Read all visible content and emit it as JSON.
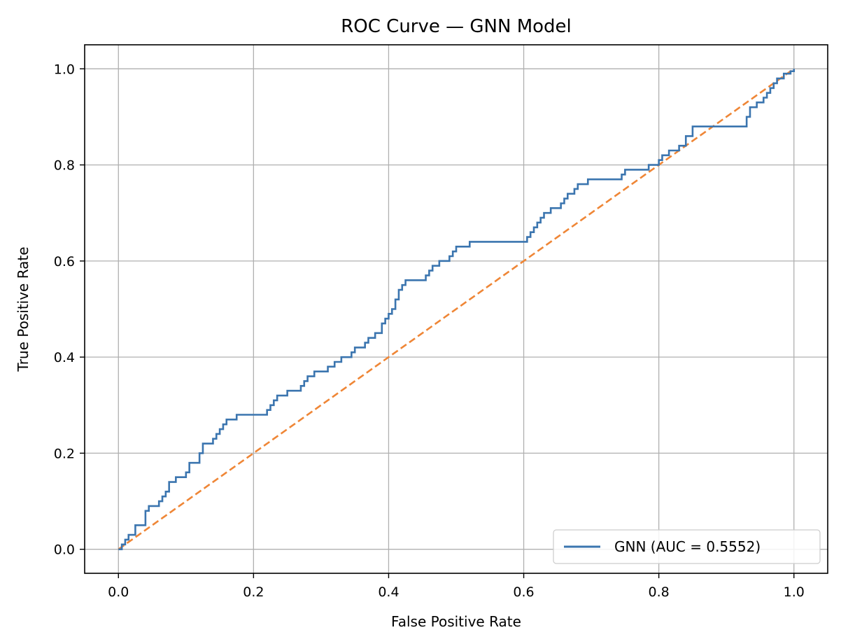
{
  "chart_data": {
    "type": "line",
    "title": "ROC Curve — GNN Model",
    "xlabel": "False Positive Rate",
    "ylabel": "True Positive Rate",
    "xlim": [
      -0.05,
      1.05
    ],
    "ylim": [
      -0.05,
      1.05
    ],
    "grid": true,
    "legend_position": "bottom-right",
    "x_ticks": [
      0.0,
      0.2,
      0.4,
      0.6,
      0.8,
      1.0
    ],
    "y_ticks": [
      0.0,
      0.2,
      0.4,
      0.6,
      0.8,
      1.0
    ],
    "x_tick_labels": [
      "0.0",
      "0.2",
      "0.4",
      "0.6",
      "0.8",
      "1.0"
    ],
    "y_tick_labels": [
      "0.0",
      "0.2",
      "0.4",
      "0.6",
      "0.8",
      "1.0"
    ],
    "series": [
      {
        "name": "GNN (AUC = 0.5552)",
        "color": "#3b75af",
        "style": "solid",
        "step": true,
        "x": [
          0.0,
          0.005,
          0.01,
          0.015,
          0.025,
          0.04,
          0.045,
          0.06,
          0.065,
          0.07,
          0.075,
          0.085,
          0.1,
          0.105,
          0.12,
          0.125,
          0.14,
          0.145,
          0.15,
          0.155,
          0.16,
          0.175,
          0.2,
          0.22,
          0.225,
          0.23,
          0.235,
          0.25,
          0.27,
          0.275,
          0.28,
          0.29,
          0.31,
          0.315,
          0.32,
          0.33,
          0.345,
          0.35,
          0.365,
          0.37,
          0.38,
          0.39,
          0.395,
          0.4,
          0.405,
          0.41,
          0.415,
          0.42,
          0.425,
          0.43,
          0.455,
          0.46,
          0.465,
          0.475,
          0.49,
          0.495,
          0.5,
          0.505,
          0.52,
          0.525,
          0.535,
          0.605,
          0.61,
          0.615,
          0.62,
          0.625,
          0.63,
          0.64,
          0.655,
          0.66,
          0.665,
          0.675,
          0.68,
          0.695,
          0.745,
          0.75,
          0.785,
          0.79,
          0.8,
          0.805,
          0.815,
          0.83,
          0.84,
          0.85,
          0.925,
          0.93,
          0.935,
          0.945,
          0.955,
          0.96,
          0.965,
          0.97,
          0.975,
          0.98,
          0.985,
          0.99,
          0.995,
          1.0
        ],
        "y": [
          0.0,
          0.01,
          0.02,
          0.03,
          0.05,
          0.08,
          0.09,
          0.1,
          0.11,
          0.12,
          0.14,
          0.15,
          0.16,
          0.18,
          0.2,
          0.22,
          0.23,
          0.24,
          0.25,
          0.26,
          0.27,
          0.28,
          0.28,
          0.29,
          0.3,
          0.31,
          0.32,
          0.33,
          0.34,
          0.35,
          0.36,
          0.37,
          0.38,
          0.38,
          0.39,
          0.4,
          0.41,
          0.42,
          0.43,
          0.44,
          0.45,
          0.47,
          0.48,
          0.49,
          0.5,
          0.52,
          0.54,
          0.55,
          0.56,
          0.56,
          0.57,
          0.58,
          0.59,
          0.6,
          0.61,
          0.62,
          0.63,
          0.63,
          0.64,
          0.64,
          0.64,
          0.65,
          0.66,
          0.67,
          0.68,
          0.69,
          0.7,
          0.71,
          0.72,
          0.73,
          0.74,
          0.75,
          0.76,
          0.77,
          0.78,
          0.79,
          0.8,
          0.8,
          0.81,
          0.82,
          0.83,
          0.84,
          0.86,
          0.88,
          0.88,
          0.9,
          0.92,
          0.93,
          0.94,
          0.95,
          0.96,
          0.97,
          0.98,
          0.98,
          0.99,
          0.99,
          0.995,
          1.0
        ]
      },
      {
        "name": "",
        "color": "#ef8636",
        "style": "dashed",
        "step": false,
        "x": [
          0.0,
          1.0
        ],
        "y": [
          0.0,
          1.0
        ]
      }
    ]
  }
}
